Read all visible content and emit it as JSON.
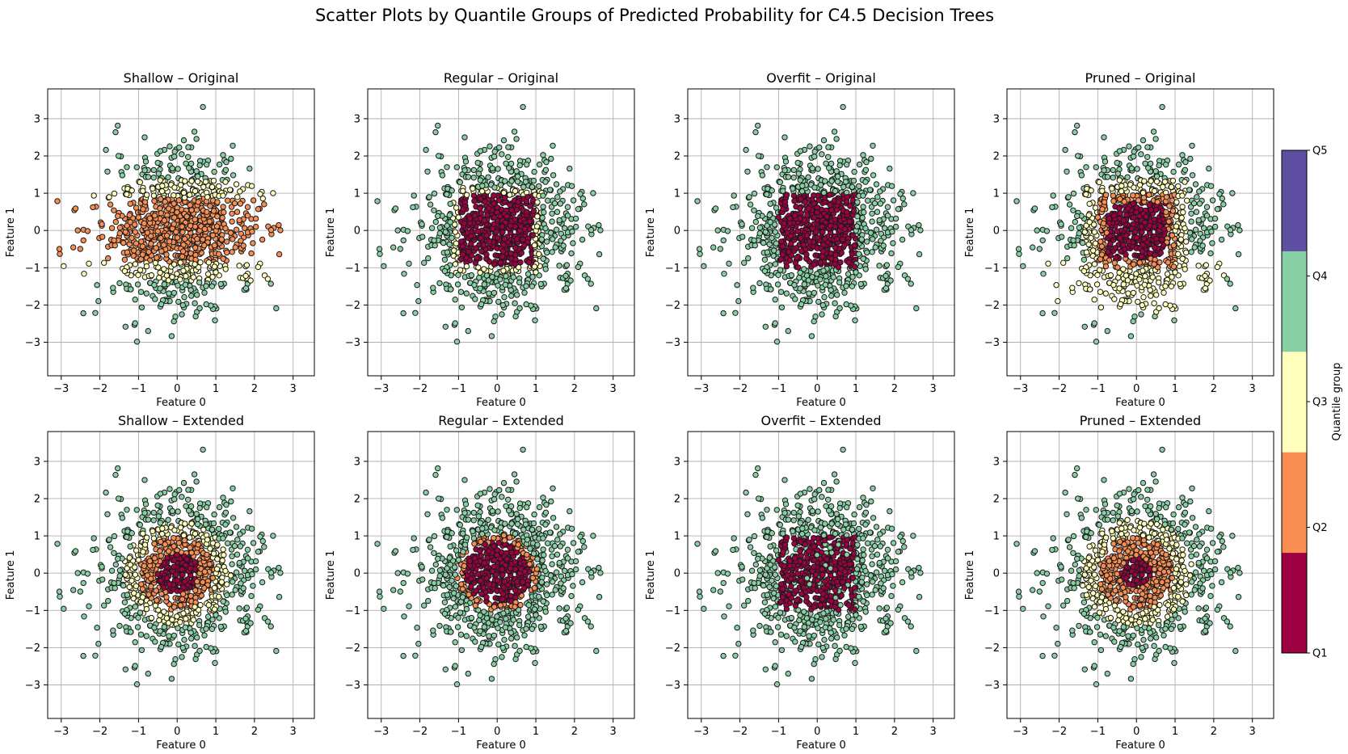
{
  "figure": {
    "title": "Scatter Plots by Quantile Groups of Predicted Probability for C4.5 Decision Trees"
  },
  "colors": {
    "Q1": "#9e0142",
    "Q2": "#f98e52",
    "Q3": "#ffffbe",
    "Q4": "#88cfa4",
    "Q5": "#5e4fa2",
    "marker_edge": "#1a1a1a",
    "grid": "#b0b0b0"
  },
  "chart_data": [
    {
      "type": "scatter",
      "title": "Shallow – Original",
      "xlabel": "Feature 0",
      "ylabel": "Feature 1",
      "xlim": [
        -3.35,
        3.55
      ],
      "ylim": [
        -3.9,
        3.8
      ],
      "xticks": [
        -3,
        -2,
        -1,
        0,
        1,
        2,
        3
      ],
      "yticks": [
        -3,
        -2,
        -1,
        0,
        1,
        2,
        3
      ],
      "grid": true,
      "n_points": 1000,
      "color_rule": "band: |y|<=0.85 -> Q2; |y|<=1.35 -> Q3; else Q4",
      "groups_present": [
        "Q2",
        "Q3",
        "Q4"
      ]
    },
    {
      "type": "scatter",
      "title": "Regular – Original",
      "xlabel": "Feature 0",
      "ylabel": "Feature 1",
      "xlim": [
        -3.35,
        3.55
      ],
      "ylim": [
        -3.9,
        3.8
      ],
      "xticks": [
        -3,
        -2,
        -1,
        0,
        1,
        2,
        3
      ],
      "yticks": [
        -3,
        -2,
        -1,
        0,
        1,
        2,
        3
      ],
      "grid": true,
      "n_points": 1000,
      "color_rule": "square: max(|x|,|y|)<=0.95 -> Q1; ring ~1.2 -> Q3; else Q4",
      "groups_present": [
        "Q1",
        "Q3",
        "Q4"
      ]
    },
    {
      "type": "scatter",
      "title": "Overfit – Original",
      "xlabel": "Feature 0",
      "ylabel": "Feature 1",
      "xlim": [
        -3.35,
        3.55
      ],
      "ylim": [
        -3.9,
        3.8
      ],
      "xticks": [
        -3,
        -2,
        -1,
        0,
        1,
        2,
        3
      ],
      "yticks": [
        -3,
        -2,
        -1,
        0,
        1,
        2,
        3
      ],
      "grid": true,
      "n_points": 1000,
      "color_rule": "square: max(|x|,|y|)<=1.0 -> Q1; else Q4",
      "groups_present": [
        "Q1",
        "Q4"
      ]
    },
    {
      "type": "scatter",
      "title": "Pruned – Original",
      "xlabel": "Feature 0",
      "ylabel": "Feature 1",
      "xlim": [
        -3.35,
        3.55
      ],
      "ylim": [
        -3.9,
        3.8
      ],
      "xticks": [
        -3,
        -2,
        -1,
        0,
        1,
        2,
        3
      ],
      "yticks": [
        -3,
        -2,
        -1,
        0,
        1,
        2,
        3
      ],
      "grid": true,
      "n_points": 1000,
      "color_rule": "square |x|,|y|<=0.75 -> Q1; <=1.0 -> Q2; lower band -> Q3; else Q4",
      "groups_present": [
        "Q1",
        "Q2",
        "Q3",
        "Q4"
      ]
    },
    {
      "type": "scatter",
      "title": "Shallow – Extended",
      "xlabel": "Feature 0",
      "ylabel": "Feature 1",
      "xlim": [
        -3.35,
        3.55
      ],
      "ylim": [
        -3.9,
        3.8
      ],
      "xticks": [
        -3,
        -2,
        -1,
        0,
        1,
        2,
        3
      ],
      "yticks": [
        -3,
        -2,
        -1,
        0,
        1,
        2,
        3
      ],
      "grid": true,
      "n_points": 1000,
      "color_rule": "radial: r<=0.55 -> Q1; r<=1.0 -> Q2; r<=1.4 -> Q3; else Q4",
      "groups_present": [
        "Q1",
        "Q2",
        "Q3",
        "Q4"
      ]
    },
    {
      "type": "scatter",
      "title": "Regular – Extended",
      "xlabel": "Feature 0",
      "ylabel": "Feature 1",
      "xlim": [
        -3.35,
        3.55
      ],
      "ylim": [
        -3.9,
        3.8
      ],
      "xticks": [
        -3,
        -2,
        -1,
        0,
        1,
        2,
        3
      ],
      "yticks": [
        -3,
        -2,
        -1,
        0,
        1,
        2,
        3
      ],
      "grid": true,
      "n_points": 1000,
      "color_rule": "radial: r<=0.85 -> Q1; r<=1.05 -> Q2; else Q4",
      "groups_present": [
        "Q1",
        "Q2",
        "Q4"
      ]
    },
    {
      "type": "scatter",
      "title": "Overfit – Extended",
      "xlabel": "Feature 0",
      "ylabel": "Feature 1",
      "xlim": [
        -3.35,
        3.55
      ],
      "ylim": [
        -3.9,
        3.8
      ],
      "xticks": [
        -3,
        -2,
        -1,
        0,
        1,
        2,
        3
      ],
      "yticks": [
        -3,
        -2,
        -1,
        0,
        1,
        2,
        3
      ],
      "grid": true,
      "n_points": 1000,
      "color_rule": "square: max(|x|,|y|)<=1.0 -> Q1 (mixed with Q4); else Q4",
      "groups_present": [
        "Q1",
        "Q4"
      ]
    },
    {
      "type": "scatter",
      "title": "Pruned – Extended",
      "xlabel": "Feature 0",
      "ylabel": "Feature 1",
      "xlim": [
        -3.35,
        3.55
      ],
      "ylim": [
        -3.9,
        3.8
      ],
      "xticks": [
        -3,
        -2,
        -1,
        0,
        1,
        2,
        3
      ],
      "yticks": [
        -3,
        -2,
        -1,
        0,
        1,
        2,
        3
      ],
      "grid": true,
      "n_points": 1000,
      "color_rule": "radial: r<=0.4 -> Q1; r<=1.0 -> Q2; r<=1.45 -> Q3; else Q4",
      "groups_present": [
        "Q1",
        "Q2",
        "Q3",
        "Q4"
      ]
    }
  ],
  "colorbar": {
    "label": "Quantile group",
    "ticks": [
      "Q1",
      "Q2",
      "Q3",
      "Q4",
      "Q5"
    ],
    "groups": [
      "Q1",
      "Q2",
      "Q3",
      "Q4",
      "Q5"
    ]
  }
}
